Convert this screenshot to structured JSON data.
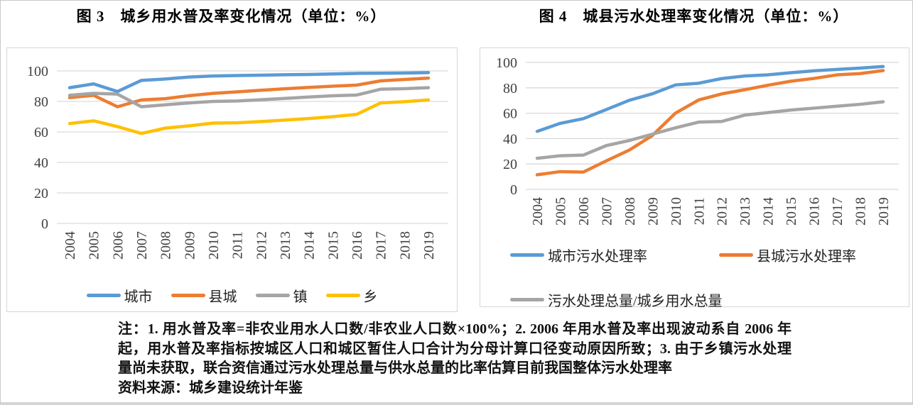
{
  "chart_data": [
    {
      "type": "line",
      "title": "图 3　城乡用水普及率变化情况（单位：%）",
      "x": [
        "2004",
        "2005",
        "2006",
        "2007",
        "2008",
        "2009",
        "2010",
        "2011",
        "2012",
        "2013",
        "2014",
        "2015",
        "2016",
        "2017",
        "2018",
        "2019"
      ],
      "xlabel": "",
      "ylabel": "",
      "ylim": [
        0,
        100
      ],
      "yticks": [
        0,
        20,
        40,
        60,
        80,
        100
      ],
      "grid": true,
      "legend_position": "bottom-center-row",
      "series": [
        {
          "name": "城市",
          "color": "#5B9BD5",
          "values": [
            89,
            91.5,
            86.5,
            93.8,
            94.7,
            96,
            96.7,
            97,
            97.2,
            97.5,
            97.7,
            98,
            98.4,
            98.5,
            98.6,
            98.9
          ]
        },
        {
          "name": "县城",
          "color": "#ED7D31",
          "values": [
            82.5,
            84,
            76.5,
            81,
            81.8,
            83.8,
            85.3,
            86.3,
            87.3,
            88.3,
            89.2,
            90,
            90.7,
            93.5,
            94.4,
            95.3
          ]
        },
        {
          "name": "镇",
          "color": "#A5A5A5",
          "values": [
            84,
            85.3,
            84.8,
            76.5,
            77.8,
            79,
            80,
            80.3,
            81.1,
            82,
            82.9,
            83.7,
            84.2,
            88,
            88.4,
            89
          ]
        },
        {
          "name": "乡",
          "color": "#FFC000",
          "values": [
            65.5,
            67.3,
            63.5,
            59,
            62.5,
            64,
            65.8,
            66,
            66.8,
            67.8,
            68.8,
            70,
            71.5,
            79,
            79.8,
            81
          ]
        }
      ]
    },
    {
      "type": "line",
      "title": "图 4　城县污水处理率变化情况（单位：%）",
      "x": [
        "2004",
        "2005",
        "2006",
        "2007",
        "2008",
        "2009",
        "2010",
        "2011",
        "2012",
        "2013",
        "2014",
        "2015",
        "2016",
        "2017",
        "2018",
        "2019"
      ],
      "xlabel": "",
      "ylabel": "",
      "ylim": [
        0,
        100
      ],
      "yticks": [
        0,
        20,
        40,
        60,
        80,
        100
      ],
      "grid": true,
      "legend_position": "bottom-two-rows",
      "legend_rows": [
        [
          0,
          1
        ],
        [
          2
        ]
      ],
      "series": [
        {
          "name": "城市污水处理率",
          "color": "#5B9BD5",
          "values": [
            45.7,
            52,
            55.7,
            62.9,
            70.2,
            75.3,
            82.3,
            83.6,
            87.3,
            89.3,
            90.2,
            91.9,
            93.4,
            94.5,
            95.5,
            96.8
          ]
        },
        {
          "name": "县城污水处理率",
          "color": "#ED7D31",
          "values": [
            11.5,
            14,
            13.6,
            22.5,
            31,
            42.5,
            60.1,
            70.4,
            75.2,
            78.5,
            82,
            85.2,
            87.4,
            90.2,
            91.2,
            93.6
          ]
        },
        {
          "name": "污水处理总量/城乡用水总量",
          "color": "#A5A5A5",
          "values": [
            24.5,
            26.5,
            27,
            34.5,
            38.5,
            43.5,
            48.5,
            53,
            53.5,
            58.5,
            60.5,
            62.5,
            64,
            65.5,
            67,
            69
          ]
        }
      ]
    }
  ],
  "note": {
    "lines": [
      "注：1. 用水普及率=非农业用水人口数/非农业人口数×100%；2. 2006 年用水普及率出现波动系自 2006 年",
      "起，用水普及率指标按城区人口和城区暂住人口合计为分母计算口径变动原因所致；3. 由于乡镇污水处理",
      "量尚未获取，联合资信通过污水处理总量与供水总量的比率估算目前我国整体污水处理率",
      "资料来源：城乡建设统计年鉴"
    ]
  },
  "colors": {
    "series_blue": "#5B9BD5",
    "series_orange": "#ED7D31",
    "series_gray": "#A5A5A5",
    "series_yellow": "#FFC000",
    "gridline": "#D9D9D9",
    "box_border": "#D6D6D6",
    "page_border": "#C9C9C9",
    "axis_text": "#404040"
  }
}
